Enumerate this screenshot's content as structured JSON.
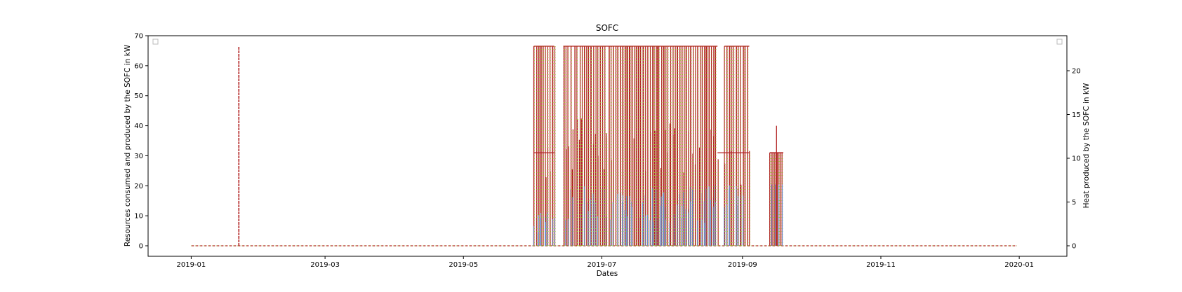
{
  "chart_data": {
    "type": "line",
    "title": "SOFC",
    "xlabel": "Dates",
    "ylabel": "Resources consumed and produced by the SOFC in kW",
    "ylabel_right": "Heat produced by the SOFC in kW",
    "x_ticks": [
      "2019-01",
      "2019-03",
      "2019-05",
      "2019-07",
      "2019-09",
      "2019-11",
      "2020-01"
    ],
    "y_ticks_left": [
      0,
      10,
      20,
      30,
      40,
      50,
      60,
      70
    ],
    "y_ticks_right": [
      0,
      5,
      10,
      15,
      20
    ],
    "xlim": [
      "2018-12-13",
      "2020-01-22"
    ],
    "ylim_left": [
      -3.5,
      70
    ],
    "ylim_right": [
      -1.2,
      24.0
    ],
    "legend": "empty legend boxes at top-left and top-right",
    "grid": false,
    "colors": {
      "power": "#b22222",
      "fuel_dashed": "#b22222",
      "fuel_dots": "#9acd32",
      "heat": "#6a8fd0"
    },
    "series": [
      {
        "axis": "left",
        "style": "dashed red with green dots",
        "x": [
          "2019-01-01",
          "2019-01-21",
          "2019-01-22",
          "2019-06-01",
          "2019-06-10",
          "2019-06-14",
          "2019-08-21",
          "2019-08-24",
          "2019-09-04",
          "2019-09-13",
          "2019-09-19",
          "2019-12-31"
        ],
        "y": [
          0,
          0,
          66.5,
          0,
          66.5,
          0,
          66.5,
          0,
          66.5,
          0,
          31,
          0
        ]
      },
      {
        "axis": "left",
        "style": "solid red",
        "x": [
          "2019-01-01",
          "2019-01-21",
          "2019-01-22",
          "2019-06-01",
          "2019-06-10",
          "2019-06-14",
          "2019-08-21",
          "2019-08-24",
          "2019-09-04",
          "2019-09-13",
          "2019-09-19",
          "2019-12-31"
        ],
        "y": [
          0,
          0,
          66.5,
          0,
          66.5,
          0,
          66.5,
          0,
          66.5,
          0,
          40,
          0
        ]
      },
      {
        "axis": "right",
        "style": "solid blue",
        "x": [
          "2019-01-01",
          "2019-06-01",
          "2019-06-10",
          "2019-06-14",
          "2019-08-21",
          "2019-08-24",
          "2019-09-04",
          "2019-09-13",
          "2019-09-19",
          "2019-12-31"
        ],
        "y": [
          0,
          0,
          3.5,
          0,
          7,
          0,
          7,
          0,
          7,
          0
        ]
      }
    ]
  }
}
